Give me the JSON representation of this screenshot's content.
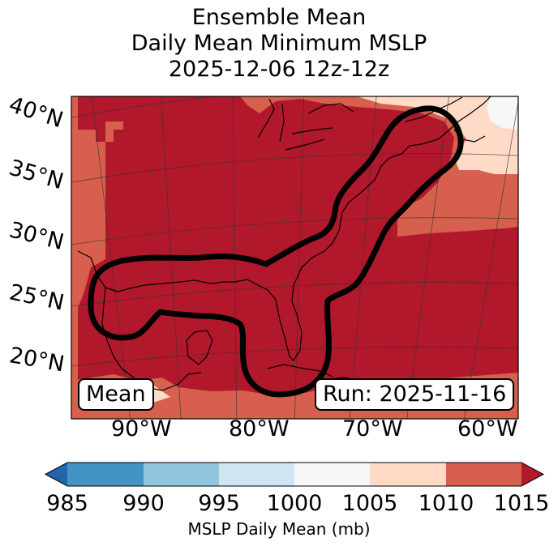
{
  "title": {
    "line1": "Ensemble Mean",
    "line2": "Daily Mean Minimum MSLP",
    "line3": "2025-12-06 12z-12z"
  },
  "map": {
    "lat_labels": [
      "40°N",
      "35°N",
      "30°N",
      "25°N",
      "20°N"
    ],
    "lon_labels": [
      "90°W",
      "80°W",
      "70°W",
      "60°W"
    ],
    "mean_label": "Mean",
    "run_label": "Run: 2025-11-16"
  },
  "colorbar": {
    "label": "MSLP Daily Mean (mb)",
    "ticks": [
      "985",
      "990",
      "995",
      "1000",
      "1005",
      "1010",
      "1015"
    ],
    "colors": {
      "below": "#2166ac",
      "c985_990": "#4393c3",
      "c990_995": "#92c5de",
      "c995_1000": "#d1e5f0",
      "c1000_1005": "#f7f7f7",
      "c1005_1010": "#fddbc7",
      "c1010_1015": "#d6604d",
      "above": "#b2182b"
    }
  }
}
